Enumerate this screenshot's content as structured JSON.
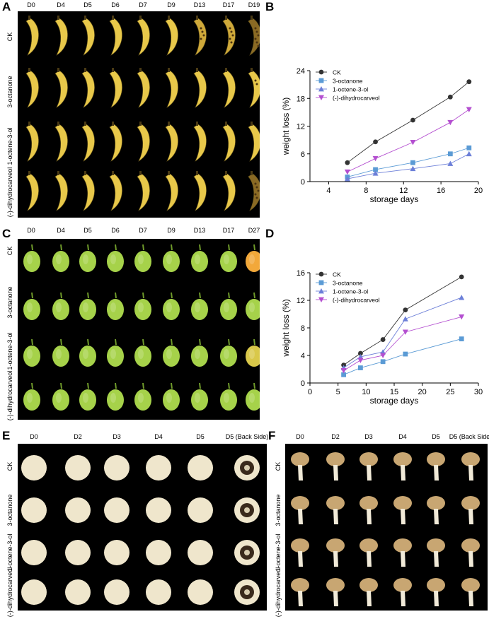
{
  "panels": {
    "A": {
      "label": "A",
      "columns": [
        "D0",
        "D4",
        "D5",
        "D6",
        "D7",
        "D9",
        "D13",
        "D17",
        "D19"
      ],
      "rows": [
        "CK",
        "3-octanone",
        "1-octene-3-ol",
        "(-)-dihydrocarveol"
      ]
    },
    "B": {
      "label": "B"
    },
    "C": {
      "label": "C",
      "columns": [
        "D0",
        "D4",
        "D5",
        "D6",
        "D7",
        "D9",
        "D13",
        "D17",
        "D27"
      ],
      "rows": [
        "CK",
        "3-octanone",
        "1-octene-3-ol",
        "(-)-dihydrocarveol"
      ]
    },
    "D": {
      "label": "D"
    },
    "E": {
      "label": "E",
      "columns": [
        "D0",
        "D2",
        "D3",
        "D4",
        "D5",
        "D5 (Back Side)"
      ],
      "rows": [
        "CK",
        "3-octanone",
        "1-octene-3-ol",
        "(-)-dihydrocarveol"
      ]
    },
    "F": {
      "label": "F",
      "columns": [
        "D0",
        "D2",
        "D3",
        "D4",
        "D5",
        "D5 (Back Side)"
      ],
      "rows": [
        "CK",
        "3-octanone",
        "1-octene-3-ol",
        "(-)-dihydrocarveol"
      ]
    }
  },
  "chart_data": [
    {
      "type": "line",
      "panel": "B",
      "xlabel": "storage days",
      "ylabel": "weight loss (%)",
      "xlim": [
        2,
        20
      ],
      "ylim": [
        0,
        24
      ],
      "xticks": [
        4,
        8,
        12,
        16,
        20
      ],
      "yticks": [
        0,
        6,
        12,
        18,
        24
      ],
      "legend": "top-left",
      "series": [
        {
          "name": "CK",
          "marker": "circle",
          "color": "#333333",
          "x": [
            6,
            9,
            13,
            17,
            19
          ],
          "y": [
            4.1,
            8.6,
            13.3,
            18.3,
            21.6
          ]
        },
        {
          "name": "3-octanone",
          "marker": "square",
          "color": "#5b9bd5",
          "x": [
            6,
            9,
            13,
            17,
            19
          ],
          "y": [
            1.0,
            2.6,
            4.1,
            6.0,
            7.3
          ]
        },
        {
          "name": "1-octene-3-ol",
          "marker": "triangle-up",
          "color": "#6c7fd8",
          "x": [
            6,
            9,
            13,
            17,
            19
          ],
          "y": [
            0.6,
            1.8,
            2.8,
            3.9,
            6.0
          ]
        },
        {
          "name": "(-)-dihydrocarveol",
          "marker": "triangle-down",
          "color": "#b44fd0",
          "x": [
            6,
            9,
            13,
            17,
            19
          ],
          "y": [
            2.1,
            5.0,
            8.5,
            12.8,
            15.6
          ]
        }
      ]
    },
    {
      "type": "line",
      "panel": "D",
      "xlabel": "storage days",
      "ylabel": "weight loss (%)",
      "xlim": [
        0,
        30
      ],
      "ylim": [
        0,
        16
      ],
      "xticks": [
        0,
        5,
        10,
        15,
        20,
        25,
        30
      ],
      "yticks": [
        0,
        4,
        8,
        12,
        16
      ],
      "legend": "top-left",
      "series": [
        {
          "name": "CK",
          "marker": "circle",
          "color": "#333333",
          "x": [
            6,
            9,
            13,
            17,
            27
          ],
          "y": [
            2.6,
            4.3,
            6.3,
            10.6,
            15.4
          ]
        },
        {
          "name": "3-octanone",
          "marker": "square",
          "color": "#5b9bd5",
          "x": [
            6,
            9,
            13,
            17,
            27
          ],
          "y": [
            1.2,
            2.2,
            3.1,
            4.2,
            6.4
          ]
        },
        {
          "name": "1-octene-3-ol",
          "marker": "triangle-up",
          "color": "#6c7fd8",
          "x": [
            6,
            9,
            13,
            17,
            27
          ],
          "y": [
            2.2,
            3.8,
            4.5,
            9.3,
            12.4
          ]
        },
        {
          "name": "(-)-dihydrocarveol",
          "marker": "triangle-down",
          "color": "#b44fd0",
          "x": [
            6,
            9,
            13,
            17,
            27
          ],
          "y": [
            1.8,
            3.3,
            4.0,
            7.4,
            9.6
          ]
        }
      ]
    }
  ]
}
